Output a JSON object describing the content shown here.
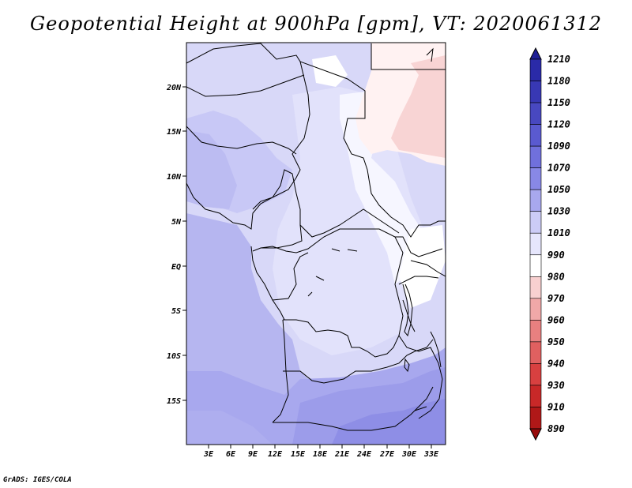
{
  "title": "Geopotential Height at 900hPa [gpm], VT: 2020061312",
  "credit": "GrADS: IGES/COLA",
  "map": {
    "lat_labels": [
      "20N",
      "15N",
      "10N",
      "5N",
      "EQ",
      "5S",
      "10S",
      "15S"
    ],
    "lon_labels": [
      "3E",
      "6E",
      "9E",
      "12E",
      "15E",
      "18E",
      "21E",
      "24E",
      "27E",
      "30E",
      "33E"
    ],
    "colors": {
      "light_lavender": "#dcdcfa",
      "lavender": "#cdcdf7",
      "periwinkle": "#babaf2",
      "medium_blue": "#a8a8ee",
      "deep_blue": "#9090e6",
      "white": "#ffffff",
      "pale_pink": "#fde4e4",
      "pink": "#f8d0d0"
    }
  },
  "colorbar": {
    "labels": [
      "1210",
      "1180",
      "1150",
      "1120",
      "1090",
      "1070",
      "1050",
      "1030",
      "1010",
      "990",
      "980",
      "970",
      "960",
      "950",
      "940",
      "930",
      "910",
      "890"
    ],
    "colors": [
      "#1e1e96",
      "#2a2aa8",
      "#3838b4",
      "#4848c0",
      "#5a5ad0",
      "#7070dc",
      "#8888e6",
      "#a8a8ee",
      "#ccccf6",
      "#e6e6fc",
      "#ffffff",
      "#f8d0d0",
      "#f0a8a8",
      "#e88080",
      "#e06060",
      "#d84040",
      "#c82828",
      "#b01818",
      "#980c0c"
    ]
  }
}
